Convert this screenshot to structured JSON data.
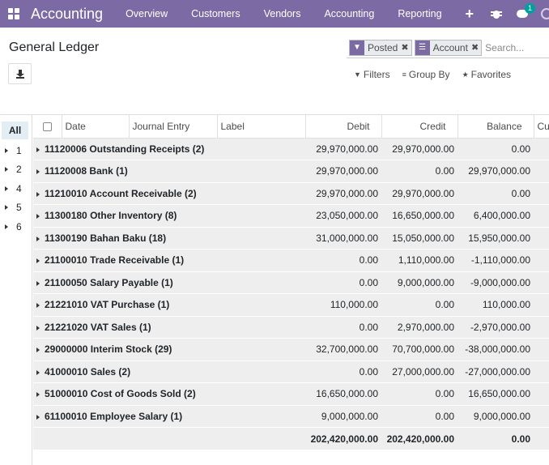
{
  "navbar": {
    "brand": "Accounting",
    "menu": [
      "Overview",
      "Customers",
      "Vendors",
      "Accounting",
      "Reporting"
    ],
    "plus": "+",
    "chat_badge": "1"
  },
  "control_panel": {
    "title": "General Ledger",
    "facets": [
      {
        "icon": "filter-icon",
        "value": "Posted"
      },
      {
        "icon": "group-by-icon",
        "value": "Account"
      }
    ],
    "search_placeholder": "Search...",
    "filters_label": "Filters",
    "group_by_label": "Group By",
    "favorites_label": "Favorites"
  },
  "side_panel": {
    "all_label": "All",
    "items": [
      "1",
      "2",
      "4",
      "5",
      "6"
    ]
  },
  "table": {
    "columns": [
      "Date",
      "Journal Entry",
      "Label",
      "Debit",
      "Credit",
      "Balance",
      "Cu"
    ],
    "groups": [
      {
        "label": "11120006 Outstanding Receipts (2)",
        "debit": "29,970,000.00",
        "credit": "29,970,000.00",
        "balance": "0.00"
      },
      {
        "label": "11120008 Bank (1)",
        "debit": "29,970,000.00",
        "credit": "0.00",
        "balance": "29,970,000.00"
      },
      {
        "label": "11210010 Account Receivable (2)",
        "debit": "29,970,000.00",
        "credit": "29,970,000.00",
        "balance": "0.00"
      },
      {
        "label": "11300180 Other Inventory (8)",
        "debit": "23,050,000.00",
        "credit": "16,650,000.00",
        "balance": "6,400,000.00"
      },
      {
        "label": "11300190 Bahan Baku (18)",
        "debit": "31,000,000.00",
        "credit": "15,050,000.00",
        "balance": "15,950,000.00"
      },
      {
        "label": "21100010 Trade Receivable (1)",
        "debit": "0.00",
        "credit": "1,110,000.00",
        "balance": "-1,110,000.00"
      },
      {
        "label": "21100050 Salary Payable (1)",
        "debit": "0.00",
        "credit": "9,000,000.00",
        "balance": "-9,000,000.00"
      },
      {
        "label": "21221010 VAT Purchase (1)",
        "debit": "110,000.00",
        "credit": "0.00",
        "balance": "110,000.00"
      },
      {
        "label": "21221020 VAT Sales (1)",
        "debit": "0.00",
        "credit": "2,970,000.00",
        "balance": "-2,970,000.00"
      },
      {
        "label": "29000000 Interim Stock (29)",
        "debit": "32,700,000.00",
        "credit": "70,700,000.00",
        "balance": "-38,000,000.00"
      },
      {
        "label": "41000010 Sales (2)",
        "debit": "0.00",
        "credit": "27,000,000.00",
        "balance": "-27,000,000.00"
      },
      {
        "label": "51000010 Cost of Goods Sold (2)",
        "debit": "16,650,000.00",
        "credit": "0.00",
        "balance": "16,650,000.00"
      },
      {
        "label": "61100010 Employee Salary (1)",
        "debit": "9,000,000.00",
        "credit": "0.00",
        "balance": "9,000,000.00"
      }
    ],
    "totals": {
      "debit": "202,420,000.00",
      "credit": "202,420,000.00",
      "balance": "0.00"
    }
  },
  "colors": {
    "navbar": "#7c6aa5",
    "badge": "#00a09d",
    "group_row": "#eeeeee"
  }
}
